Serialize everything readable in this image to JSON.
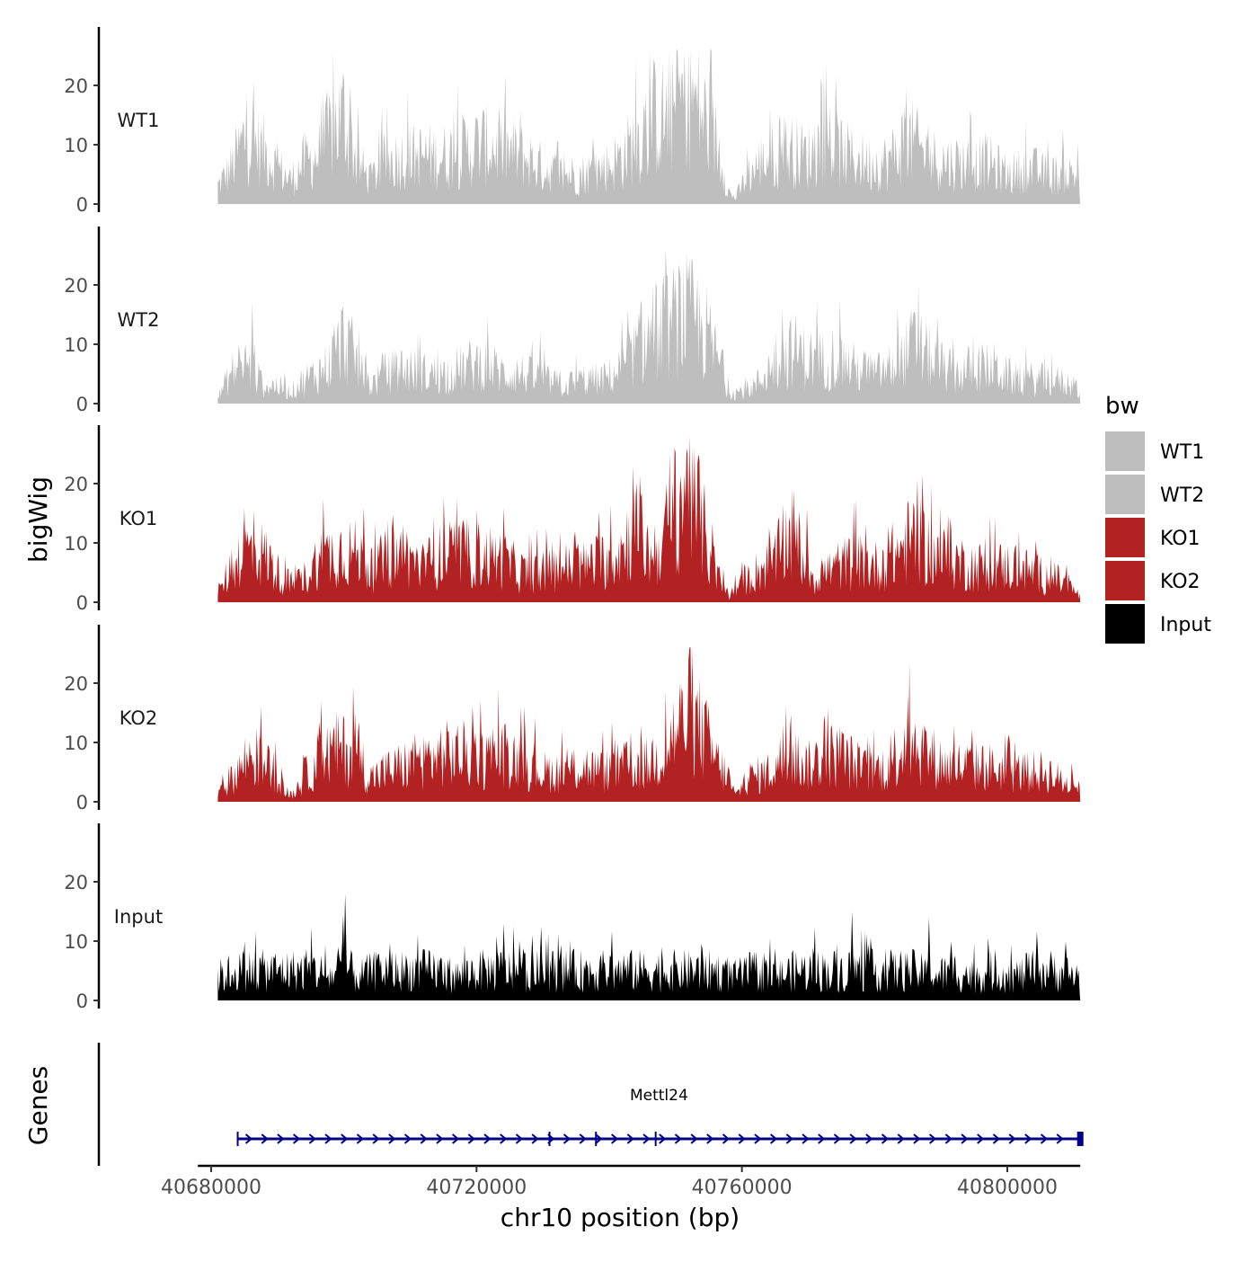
{
  "chart_data": {
    "type": "area",
    "title": "",
    "xlabel": "chr10 position (bp)",
    "ylabel": "bigWig",
    "genes_label": "Genes",
    "xlim": [
      40678000,
      40811000
    ],
    "x_ticks": [
      40680000,
      40720000,
      40760000,
      40800000
    ],
    "x_tick_labels": [
      "40680000",
      "40720000",
      "40760000",
      "40800000"
    ],
    "signal_range": [
      40681000,
      40811000
    ],
    "ylim": [
      0,
      30
    ],
    "y_ticks": [
      0,
      10,
      20
    ],
    "y_tick_labels": [
      "0",
      "10",
      "20"
    ],
    "legend": {
      "title": "bw",
      "position": "right",
      "entries": [
        {
          "label": "WT1",
          "color": "#bebebe"
        },
        {
          "label": "WT2",
          "color": "#bebebe"
        },
        {
          "label": "KO1",
          "color": "#b22222"
        },
        {
          "label": "KO2",
          "color": "#b22222"
        },
        {
          "label": "Input",
          "color": "#000000"
        }
      ]
    },
    "series": [
      {
        "name": "WT1",
        "color": "#bebebe",
        "anchors": [
          [
            40681000,
            3
          ],
          [
            40683000,
            6
          ],
          [
            40685000,
            11
          ],
          [
            40688000,
            9
          ],
          [
            40690000,
            6
          ],
          [
            40692000,
            4
          ],
          [
            40694000,
            7
          ],
          [
            40696000,
            8
          ],
          [
            40698000,
            12
          ],
          [
            40700000,
            15
          ],
          [
            40702000,
            7
          ],
          [
            40704000,
            4
          ],
          [
            40706000,
            7
          ],
          [
            40709000,
            8
          ],
          [
            40712000,
            8
          ],
          [
            40715000,
            8
          ],
          [
            40718000,
            9
          ],
          [
            40721000,
            10
          ],
          [
            40724000,
            9
          ],
          [
            40727000,
            8
          ],
          [
            40730000,
            6
          ],
          [
            40733000,
            5
          ],
          [
            40736000,
            5
          ],
          [
            40739000,
            6
          ],
          [
            40742000,
            8
          ],
          [
            40745000,
            12
          ],
          [
            40747000,
            15
          ],
          [
            40749000,
            14
          ],
          [
            40751000,
            18
          ],
          [
            40753000,
            17
          ],
          [
            40755000,
            13
          ],
          [
            40757000,
            8
          ],
          [
            40758000,
            2
          ],
          [
            40759000,
            1
          ],
          [
            40761000,
            5
          ],
          [
            40764000,
            8
          ],
          [
            40767000,
            9
          ],
          [
            40770000,
            8
          ],
          [
            40773000,
            10
          ],
          [
            40776000,
            8
          ],
          [
            40779000,
            7
          ],
          [
            40782000,
            7
          ],
          [
            40785000,
            11
          ],
          [
            40788000,
            8
          ],
          [
            40791000,
            7
          ],
          [
            40794000,
            7
          ],
          [
            40797000,
            7
          ],
          [
            40800000,
            5
          ],
          [
            40803000,
            6
          ],
          [
            40806000,
            5
          ],
          [
            40809000,
            5
          ],
          [
            40811000,
            5
          ]
        ]
      },
      {
        "name": "WT2",
        "color": "#bebebe",
        "anchors": [
          [
            40681000,
            1
          ],
          [
            40683000,
            5
          ],
          [
            40685000,
            7
          ],
          [
            40688000,
            3
          ],
          [
            40690000,
            3
          ],
          [
            40692000,
            2
          ],
          [
            40694000,
            4
          ],
          [
            40696000,
            5
          ],
          [
            40698000,
            7
          ],
          [
            40700000,
            11
          ],
          [
            40702000,
            7
          ],
          [
            40704000,
            3
          ],
          [
            40706000,
            5
          ],
          [
            40709000,
            6
          ],
          [
            40712000,
            5
          ],
          [
            40715000,
            5
          ],
          [
            40718000,
            6
          ],
          [
            40721000,
            7
          ],
          [
            40724000,
            5
          ],
          [
            40727000,
            5
          ],
          [
            40730000,
            4
          ],
          [
            40733000,
            3
          ],
          [
            40736000,
            4
          ],
          [
            40739000,
            4
          ],
          [
            40742000,
            6
          ],
          [
            40745000,
            10
          ],
          [
            40747000,
            12
          ],
          [
            40749000,
            13
          ],
          [
            40751000,
            15
          ],
          [
            40753000,
            14
          ],
          [
            40755000,
            11
          ],
          [
            40757000,
            6
          ],
          [
            40758000,
            2
          ],
          [
            40760000,
            2
          ],
          [
            40762000,
            3
          ],
          [
            40765000,
            7
          ],
          [
            40768000,
            9
          ],
          [
            40771000,
            7
          ],
          [
            40774000,
            8
          ],
          [
            40777000,
            6
          ],
          [
            40780000,
            5
          ],
          [
            40783000,
            6
          ],
          [
            40786000,
            10
          ],
          [
            40789000,
            7
          ],
          [
            40792000,
            5
          ],
          [
            40795000,
            6
          ],
          [
            40798000,
            6
          ],
          [
            40801000,
            4
          ],
          [
            40804000,
            4
          ],
          [
            40807000,
            4
          ],
          [
            40810000,
            3
          ],
          [
            40811000,
            2
          ]
        ]
      },
      {
        "name": "KO1",
        "color": "#b22222",
        "anchors": [
          [
            40681000,
            1
          ],
          [
            40683000,
            6
          ],
          [
            40685000,
            9
          ],
          [
            40688000,
            8
          ],
          [
            40690000,
            5
          ],
          [
            40692000,
            3
          ],
          [
            40694000,
            4
          ],
          [
            40696000,
            7
          ],
          [
            40698000,
            8
          ],
          [
            40700000,
            9
          ],
          [
            40702000,
            8
          ],
          [
            40704000,
            5
          ],
          [
            40706000,
            7
          ],
          [
            40709000,
            8
          ],
          [
            40712000,
            6
          ],
          [
            40715000,
            8
          ],
          [
            40718000,
            8
          ],
          [
            40721000,
            8
          ],
          [
            40724000,
            7
          ],
          [
            40727000,
            5
          ],
          [
            40730000,
            5
          ],
          [
            40733000,
            6
          ],
          [
            40736000,
            6
          ],
          [
            40739000,
            7
          ],
          [
            40742000,
            9
          ],
          [
            40744000,
            13
          ],
          [
            40746000,
            8
          ],
          [
            40748000,
            10
          ],
          [
            40750000,
            16
          ],
          [
            40752000,
            20
          ],
          [
            40754000,
            13
          ],
          [
            40756000,
            5
          ],
          [
            40758000,
            1
          ],
          [
            40760000,
            3
          ],
          [
            40762000,
            5
          ],
          [
            40765000,
            7
          ],
          [
            40767000,
            11
          ],
          [
            40769000,
            8
          ],
          [
            40771000,
            4
          ],
          [
            40774000,
            6
          ],
          [
            40777000,
            7
          ],
          [
            40780000,
            6
          ],
          [
            40783000,
            8
          ],
          [
            40786000,
            11
          ],
          [
            40789000,
            8
          ],
          [
            40792000,
            7
          ],
          [
            40795000,
            6
          ],
          [
            40798000,
            6
          ],
          [
            40801000,
            6
          ],
          [
            40804000,
            5
          ],
          [
            40807000,
            4
          ],
          [
            40809000,
            3
          ],
          [
            40811000,
            1
          ]
        ]
      },
      {
        "name": "KO2",
        "color": "#b22222",
        "anchors": [
          [
            40681000,
            1
          ],
          [
            40683000,
            4
          ],
          [
            40686000,
            8
          ],
          [
            40688000,
            6
          ],
          [
            40690000,
            5
          ],
          [
            40691000,
            2
          ],
          [
            40692000,
            1
          ],
          [
            40694000,
            4
          ],
          [
            40696000,
            7
          ],
          [
            40699000,
            9
          ],
          [
            40702000,
            8
          ],
          [
            40704000,
            4
          ],
          [
            40706000,
            5
          ],
          [
            40709000,
            6
          ],
          [
            40712000,
            7
          ],
          [
            40715000,
            8
          ],
          [
            40718000,
            8
          ],
          [
            40721000,
            7
          ],
          [
            40724000,
            8
          ],
          [
            40727000,
            7
          ],
          [
            40730000,
            5
          ],
          [
            40733000,
            5
          ],
          [
            40736000,
            6
          ],
          [
            40739000,
            5
          ],
          [
            40742000,
            6
          ],
          [
            40745000,
            6
          ],
          [
            40748000,
            8
          ],
          [
            40750000,
            12
          ],
          [
            40752000,
            14
          ],
          [
            40754000,
            12
          ],
          [
            40756000,
            7
          ],
          [
            40758000,
            4
          ],
          [
            40759000,
            1
          ],
          [
            40761000,
            4
          ],
          [
            40764000,
            5
          ],
          [
            40767000,
            8
          ],
          [
            40770000,
            6
          ],
          [
            40773000,
            8
          ],
          [
            40776000,
            7
          ],
          [
            40779000,
            5
          ],
          [
            40782000,
            6
          ],
          [
            40785000,
            11
          ],
          [
            40788000,
            8
          ],
          [
            40791000,
            6
          ],
          [
            40794000,
            6
          ],
          [
            40797000,
            6
          ],
          [
            40800000,
            5
          ],
          [
            40803000,
            5
          ],
          [
            40806000,
            5
          ],
          [
            40809000,
            3
          ],
          [
            40811000,
            3
          ]
        ]
      },
      {
        "name": "Input",
        "color": "#000000",
        "anchors": [
          [
            40681000,
            4
          ],
          [
            40684000,
            5
          ],
          [
            40687000,
            5
          ],
          [
            40690000,
            5
          ],
          [
            40693000,
            5
          ],
          [
            40696000,
            5
          ],
          [
            40698000,
            4
          ],
          [
            40700000,
            6
          ],
          [
            40702000,
            4
          ],
          [
            40705000,
            5
          ],
          [
            40708000,
            5
          ],
          [
            40711000,
            5
          ],
          [
            40714000,
            5
          ],
          [
            40717000,
            4
          ],
          [
            40720000,
            5
          ],
          [
            40723000,
            5
          ],
          [
            40726000,
            5
          ],
          [
            40729000,
            5
          ],
          [
            40732000,
            5
          ],
          [
            40735000,
            5
          ],
          [
            40738000,
            5
          ],
          [
            40741000,
            5
          ],
          [
            40744000,
            5
          ],
          [
            40747000,
            5
          ],
          [
            40750000,
            5
          ],
          [
            40753000,
            5
          ],
          [
            40756000,
            5
          ],
          [
            40759000,
            4
          ],
          [
            40762000,
            5
          ],
          [
            40765000,
            4
          ],
          [
            40768000,
            5
          ],
          [
            40771000,
            5
          ],
          [
            40774000,
            5
          ],
          [
            40777000,
            5
          ],
          [
            40780000,
            5
          ],
          [
            40783000,
            5
          ],
          [
            40786000,
            5
          ],
          [
            40789000,
            4
          ],
          [
            40792000,
            5
          ],
          [
            40795000,
            4
          ],
          [
            40798000,
            5
          ],
          [
            40801000,
            4
          ],
          [
            40804000,
            5
          ],
          [
            40807000,
            5
          ],
          [
            40811000,
            4
          ]
        ]
      }
    ],
    "spikes": {
      "WT1": [
        [
          40685300,
          17
        ],
        [
          40699800,
          18
        ],
        [
          40701000,
          19
        ],
        [
          40726600,
          16
        ],
        [
          40745500,
          19
        ],
        [
          40750600,
          22
        ],
        [
          40752500,
          22
        ],
        [
          40766400,
          15
        ],
        [
          40784500,
          17
        ]
      ],
      "WT2": [
        [
          40686200,
          17
        ],
        [
          40701200,
          15
        ],
        [
          40729600,
          12
        ],
        [
          40751800,
          23
        ],
        [
          40766100,
          16
        ],
        [
          40785600,
          16
        ]
      ],
      "KO1": [
        [
          40685000,
          16
        ],
        [
          40703000,
          16
        ],
        [
          40724100,
          16
        ],
        [
          40743600,
          23
        ],
        [
          40752100,
          28
        ],
        [
          40767800,
          19
        ],
        [
          40785100,
          16
        ]
      ],
      "KO2": [
        [
          40687500,
          16
        ],
        [
          40701700,
          15
        ],
        [
          40726700,
          16
        ],
        [
          40750700,
          20
        ],
        [
          40752500,
          23
        ],
        [
          40785000,
          18
        ]
      ],
      "Input": [
        [
          40700200,
          18
        ],
        [
          40724100,
          13
        ],
        [
          40776600,
          15
        ],
        [
          40788200,
          14
        ]
      ]
    },
    "gene_track": {
      "name": "Mettl24",
      "start": 40684000,
      "end": 40811000,
      "strand": "+",
      "color": "#00008b",
      "exons": [
        40684000,
        40731000,
        40738000,
        40747000,
        40811000
      ]
    }
  }
}
